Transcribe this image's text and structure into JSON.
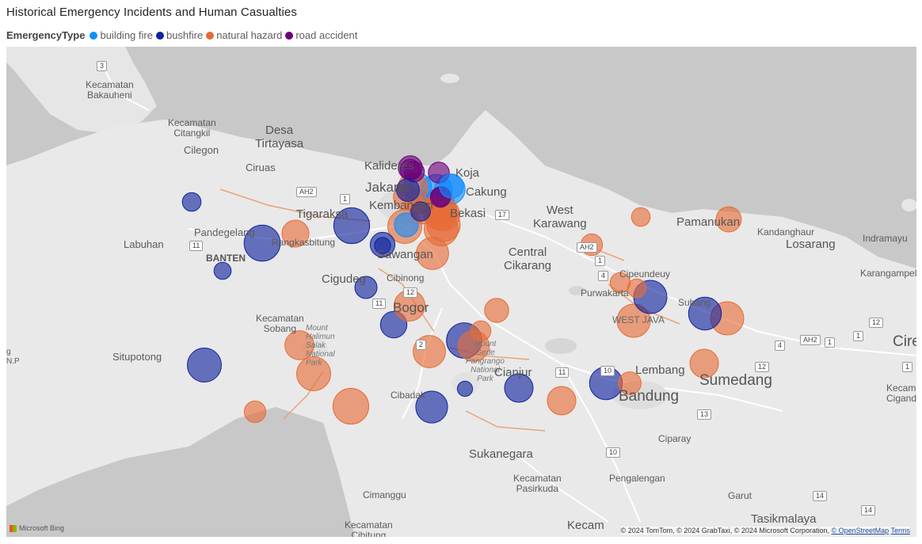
{
  "title": "Historical Emergency Incidents and Human Casualties",
  "legend": {
    "title": "EmergencyType",
    "items": [
      {
        "label": "building fire",
        "color": "#118DFF"
      },
      {
        "label": "bushfire",
        "color": "#12239E"
      },
      {
        "label": "natural hazard",
        "color": "#E66C37"
      },
      {
        "label": "road accident",
        "color": "#6B007B"
      }
    ]
  },
  "map_labels": {
    "kecamatan_bakauheni": "Kecamatan\nBakauheni",
    "kecamatan_citangkil": "Kecamatan\nCitangkil",
    "desa_tirtayasa": "Desa\nTirtayasa",
    "cilegon": "Cilegon",
    "ciruas": "Ciruas",
    "kalideres": "Kalideres",
    "koja": "Koja",
    "jakarta": "Jakarta",
    "cakung": "Cakung",
    "kembangan": "Kembangan",
    "bekasi": "Bekasi",
    "tigaraksa": "Tigaraksa",
    "west_karawang": "West\nKarawang",
    "pamanukan": "Pamanukan",
    "kandanghaur": "Kandanghaur",
    "indramayu": "Indramayu",
    "losarang": "Losarang",
    "pandegelang": "Pandegelang",
    "rangkasbitung": "Rangkasbitung",
    "labuhan": "Labuhan",
    "banten": "BANTEN",
    "sawangan": "Sawangan",
    "central_cikarang": "Central\nCikarang",
    "cipeundeuy": "Cipeundeuy",
    "karangampel": "Karangampel",
    "cigudeg": "Cigudeg",
    "cibinong": "Cibinong",
    "purwakarta": "Purwakarta",
    "subang": "Subang",
    "bogor": "Bogor",
    "kecamatan_sobang": "Kecamatan\nSobang",
    "mount_halimun_salak": "Mount\nHalimun\nSalak\nNational\nPark",
    "west_java": "WEST JAVA",
    "situpotong": "Situpotong",
    "mount_gede_pangrango": "Mount\nGede\nPangrango\nNational\nPark",
    "cianjur": "Cianjur",
    "lembang": "Lembang",
    "sumedang": "Sumedang",
    "cirebon": "Cire",
    "bandung": "Bandung",
    "cibadak": "Cibadak",
    "kecam_right": "Kecam\nCiganda",
    "ciparay": "Ciparay",
    "sukanegara": "Sukanegara",
    "kecamatan_pasirkuda": "Kecamatan\nPasirkuda",
    "pengalengan": "Pengalengan",
    "cimanggu": "Cimanggu",
    "garut": "Garut",
    "kecamatan_cibitung": "Kecamatan\nCibitung",
    "kecamatan_bottom": "Kecam",
    "tasikmalaya": "Tasikmalaya",
    "np_left": "g\nN.P"
  },
  "road_shields": {
    "r3": "3",
    "ah2_a": "AH2",
    "r1_a": "1",
    "r17": "17",
    "r1_b": "1",
    "r12_a": "12",
    "ah2_b": "AH2",
    "r1_c": "1",
    "r4_a": "4",
    "r11_a": "11",
    "r12_b": "12",
    "r2": "2",
    "r12_c": "12",
    "r4_b": "4",
    "ah2_c": "AH2",
    "r1_d": "1",
    "r1_e": "1",
    "r11_b": "11",
    "r11_c": "11",
    "r10_a": "10",
    "r13": "13",
    "r10_b": "10",
    "r14_a": "14",
    "r14_b": "14"
  },
  "points": [
    {
      "type": "bushfire",
      "casualties": 12
    },
    {
      "type": "bushfire",
      "casualties": 45
    },
    {
      "type": "bushfire",
      "casualties": 10
    },
    {
      "type": "natural hazard",
      "casualties": 25
    },
    {
      "type": "bushfire",
      "casualties": 44
    },
    {
      "type": "bushfire",
      "casualties": 9
    },
    {
      "type": "bushfire",
      "casualties": 17
    },
    {
      "type": "bushfire",
      "casualties": 24
    },
    {
      "type": "natural hazard",
      "casualties": 40
    },
    {
      "type": "natural hazard",
      "casualties": 29
    },
    {
      "type": "natural hazard",
      "casualties": 16
    },
    {
      "type": "bushfire",
      "casualties": 40
    },
    {
      "type": "natural hazard",
      "casualties": 44
    },
    {
      "type": "bushfire",
      "casualties": 43
    },
    {
      "type": "natural hazard",
      "casualties": 14
    },
    {
      "type": "bushfire",
      "casualties": 8
    },
    {
      "type": "natural hazard",
      "casualties": 36
    },
    {
      "type": "natural hazard",
      "casualties": 33
    },
    {
      "type": "natural hazard",
      "casualties": 20
    },
    {
      "type": "bushfire",
      "casualties": 35
    },
    {
      "type": "natural hazard",
      "casualties": 28
    },
    {
      "type": "bushfire",
      "casualties": 28
    },
    {
      "type": "natural hazard",
      "casualties": 33
    },
    {
      "type": "natural hazard",
      "casualties": 38
    },
    {
      "type": "bushfire",
      "casualties": 38
    },
    {
      "type": "natural hazard",
      "casualties": 38
    },
    {
      "type": "natural hazard",
      "casualties": 28
    },
    {
      "type": "natural hazard",
      "casualties": 14
    },
    {
      "type": "natural hazard",
      "casualties": 12
    },
    {
      "type": "natural hazard",
      "casualties": 22
    },
    {
      "type": "natural hazard",
      "casualties": 12
    },
    {
      "type": "bushfire",
      "casualties": 37
    },
    {
      "type": "natural hazard",
      "casualties": 36
    },
    {
      "type": "natural hazard",
      "casualties": 16
    },
    {
      "type": "bushfire",
      "casualties": 37
    },
    {
      "type": "natural hazard",
      "casualties": 40
    },
    {
      "type": "natural hazard",
      "casualties": 40
    },
    {
      "type": "natural hazard",
      "casualties": 21
    },
    {
      "type": "natural hazard",
      "casualties": 21
    },
    {
      "type": "natural hazard",
      "casualties": 23
    },
    {
      "type": "bushfire",
      "casualties": 21
    },
    {
      "type": "natural hazard",
      "casualties": 21
    },
    {
      "type": "natural hazard",
      "casualties": 38
    },
    {
      "type": "building fire",
      "casualties": 34
    },
    {
      "type": "natural hazard",
      "casualties": 36
    },
    {
      "type": "natural hazard",
      "casualties": 40
    },
    {
      "type": "building fire",
      "casualties": 32
    },
    {
      "type": "building fire",
      "casualties": 27
    },
    {
      "type": "natural hazard",
      "casualties": 30
    },
    {
      "type": "road accident",
      "casualties": 20
    },
    {
      "type": "natural hazard",
      "casualties": 36
    },
    {
      "type": "building fire",
      "casualties": 20
    },
    {
      "type": "natural hazard",
      "casualties": 24
    },
    {
      "type": "road accident",
      "casualties": 15
    },
    {
      "type": "road accident",
      "casualties": 14
    },
    {
      "type": "road accident",
      "casualties": 14
    },
    {
      "type": "bushfire",
      "casualties": 13
    },
    {
      "type": "road accident",
      "casualties": 14
    },
    {
      "type": "bushfire",
      "casualties": 18
    },
    {
      "type": "road accident",
      "casualties": 13
    },
    {
      "type": "natural hazard",
      "casualties": 18
    },
    {
      "type": "building fire",
      "casualties": 20
    }
  ],
  "footer": {
    "bing": "Microsoft Bing",
    "attribution": "© 2024 TomTom, © 2024 GrabTaxi, © 2024 Microsoft Corporation,",
    "osm": "© OpenStreetMap",
    "terms": "Terms"
  }
}
